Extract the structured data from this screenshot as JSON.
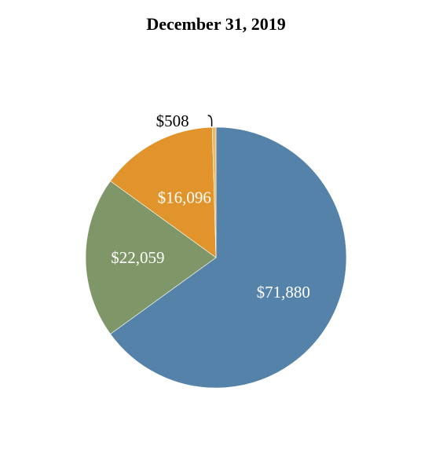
{
  "chart_data": {
    "type": "pie",
    "title": "December 31, 2019",
    "slices": [
      {
        "label": "$71,880",
        "value": 71880,
        "color": "#5582a8",
        "label_color": "#ffffff"
      },
      {
        "label": "$22,059",
        "value": 22059,
        "color": "#7f9768",
        "label_color": "#ffffff"
      },
      {
        "label": "$16,096",
        "value": 16096,
        "color": "#e0942b",
        "label_color": "#ffffff"
      },
      {
        "label": "$508",
        "value": 508,
        "color": "#edb862",
        "label_color": "#000000"
      }
    ],
    "start_angle": "12 o'clock",
    "direction": "clockwise",
    "legend": "none"
  }
}
